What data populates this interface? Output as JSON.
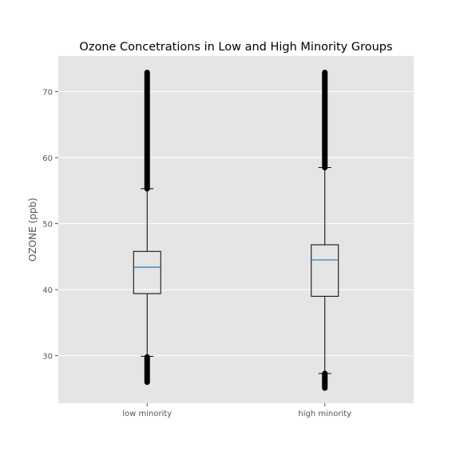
{
  "chart_data": {
    "type": "box",
    "title": "Ozone Concetrations in Low and High Minority Groups",
    "xlabel": "",
    "ylabel": "OZONE (ppb)",
    "categories": [
      "low minority",
      "high minority"
    ],
    "ylim": [
      22.8,
      75.4
    ],
    "yticks": [
      30,
      40,
      50,
      60,
      70
    ],
    "grid": true,
    "boxes": [
      {
        "name": "low minority",
        "whisker_low": 29.9,
        "q1": 39.4,
        "median": 43.4,
        "q3": 45.8,
        "whisker_high": 55.3,
        "outliers_low": [
          26.0,
          29.8
        ],
        "outliers_high": [
          55.3,
          72.9
        ]
      },
      {
        "name": "high minority",
        "whisker_low": 27.3,
        "q1": 39.0,
        "median": 44.5,
        "q3": 46.8,
        "whisker_high": 58.5,
        "outliers_low": [
          25.1,
          27.3
        ],
        "outliers_high": [
          58.5,
          72.9
        ]
      }
    ],
    "colors": {
      "background": "#e5e5e5",
      "grid": "#ffffff",
      "box": "#000000",
      "median": "#1f77b4",
      "text": "#555555",
      "title": "#000000"
    }
  }
}
